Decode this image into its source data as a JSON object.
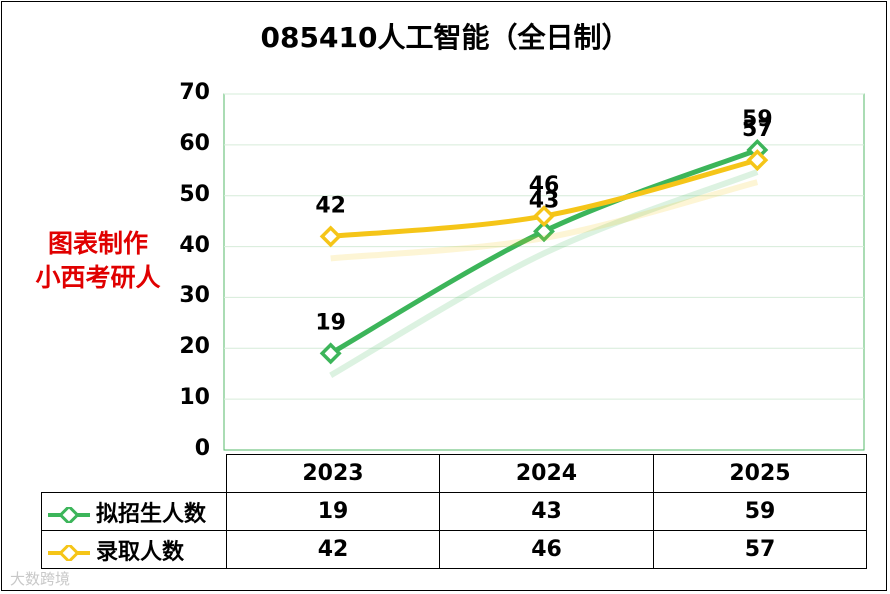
{
  "chart_data": {
    "type": "line",
    "title": "085410人工智能（全日制）",
    "categories": [
      "2023",
      "2024",
      "2025"
    ],
    "series": [
      {
        "name": "拟招生人数",
        "values": [
          19,
          43,
          59
        ],
        "color": "#3cb55a"
      },
      {
        "name": "录取人数",
        "values": [
          42,
          46,
          57
        ],
        "color": "#f5c518"
      }
    ],
    "ylim": [
      0,
      70
    ],
    "yticks": [
      0,
      10,
      20,
      30,
      40,
      50,
      60,
      70
    ],
    "grid": true,
    "legend": "data-table",
    "data_labels": true
  },
  "watermark": {
    "line1": "图表制作",
    "line2": "小西考研人",
    "color": "#e00000"
  },
  "corner_watermark": "大数跨境"
}
